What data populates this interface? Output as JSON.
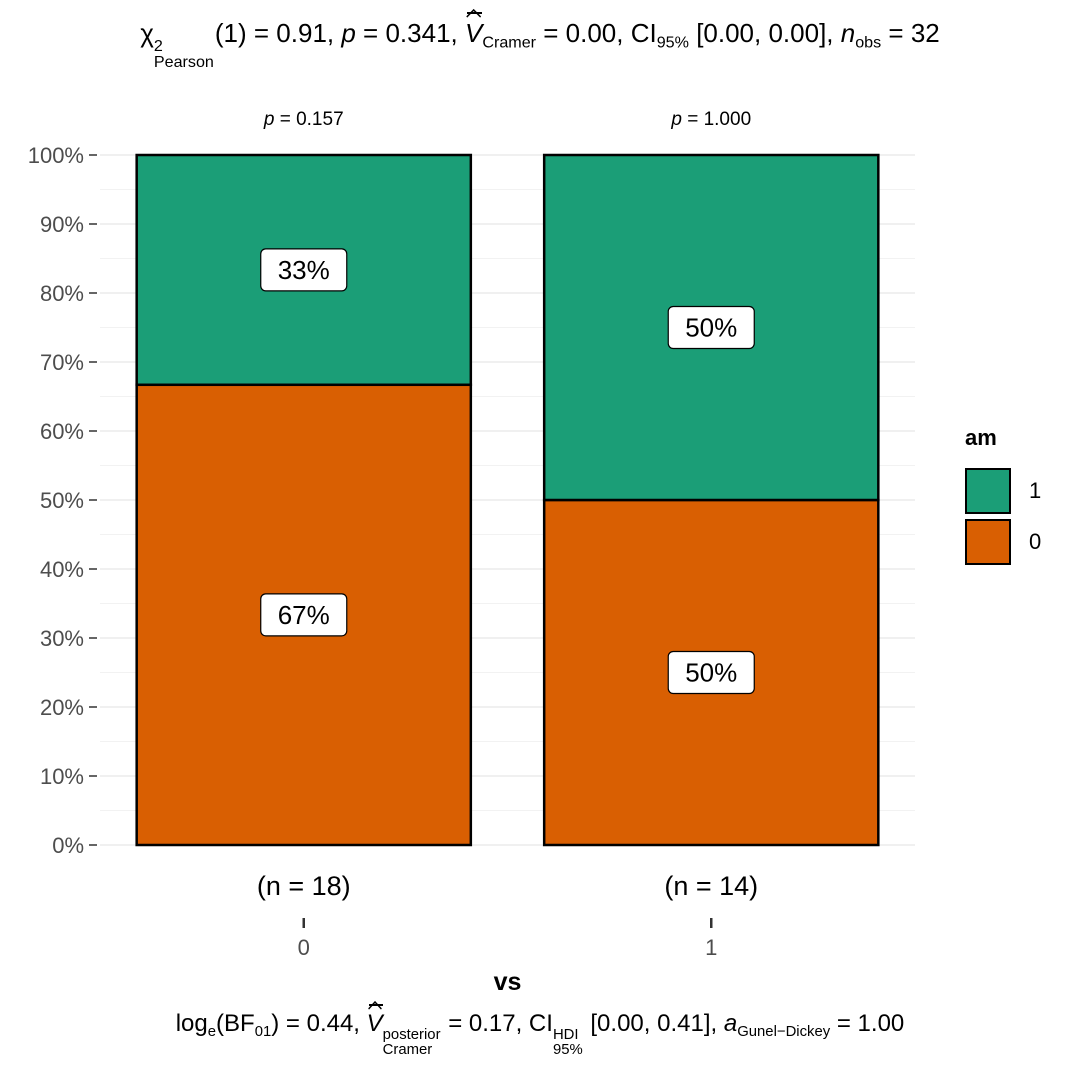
{
  "title": {
    "chi": "χ",
    "chi_sup": "2",
    "chi_sub": "Pearson",
    "df": "(1) = 0.91, ",
    "p_label": "p",
    "p_value": " = 0.341, ",
    "v_label": "V",
    "v_sub": "Cramer",
    "v_value": " = 0.00, CI",
    "ci_sub": "95%",
    "ci_value": " [0.00, 0.00], ",
    "n_label": "n",
    "n_sub": "obs",
    "n_value": " = 32"
  },
  "caption": {
    "log": "log",
    "log_sub": "e",
    "bf": "(BF",
    "bf_sub": "01",
    "bf_value": ") = 0.44, ",
    "v_label": "V",
    "v_sup": "posterior",
    "v_sub": "Cramer",
    "v_value": " = 0.17, CI",
    "ci_sup": "HDI",
    "ci_sub": "95%",
    "ci_value": " [0.00, 0.41], ",
    "a_label": "a",
    "a_sub": "Gunel−Dickey",
    "a_value": " = 1.00"
  },
  "legend": {
    "title": "am",
    "items": [
      {
        "label": "1",
        "color": "#1B9E77"
      },
      {
        "label": "0",
        "color": "#D95F02"
      }
    ]
  },
  "chart_data": {
    "type": "bar",
    "stacked": true,
    "xlabel": "vs",
    "ylabel": "",
    "categories": [
      "0",
      "1"
    ],
    "category_counts": [
      "(n = 18)",
      "(n = 14)"
    ],
    "category_pvalues": [
      "p = 0.157",
      "p = 1.000"
    ],
    "ylim": [
      0,
      100
    ],
    "y_ticks": [
      "0%",
      "10%",
      "20%",
      "30%",
      "40%",
      "50%",
      "60%",
      "70%",
      "80%",
      "90%",
      "100%"
    ],
    "series": [
      {
        "name": "0",
        "color": "#D95F02",
        "values": [
          66.7,
          50
        ],
        "labels": [
          "67%",
          "50%"
        ]
      },
      {
        "name": "1",
        "color": "#1B9E77",
        "values": [
          33.3,
          50
        ],
        "labels": [
          "33%",
          "50%"
        ]
      }
    ],
    "grid": true,
    "legend_position": "right"
  }
}
